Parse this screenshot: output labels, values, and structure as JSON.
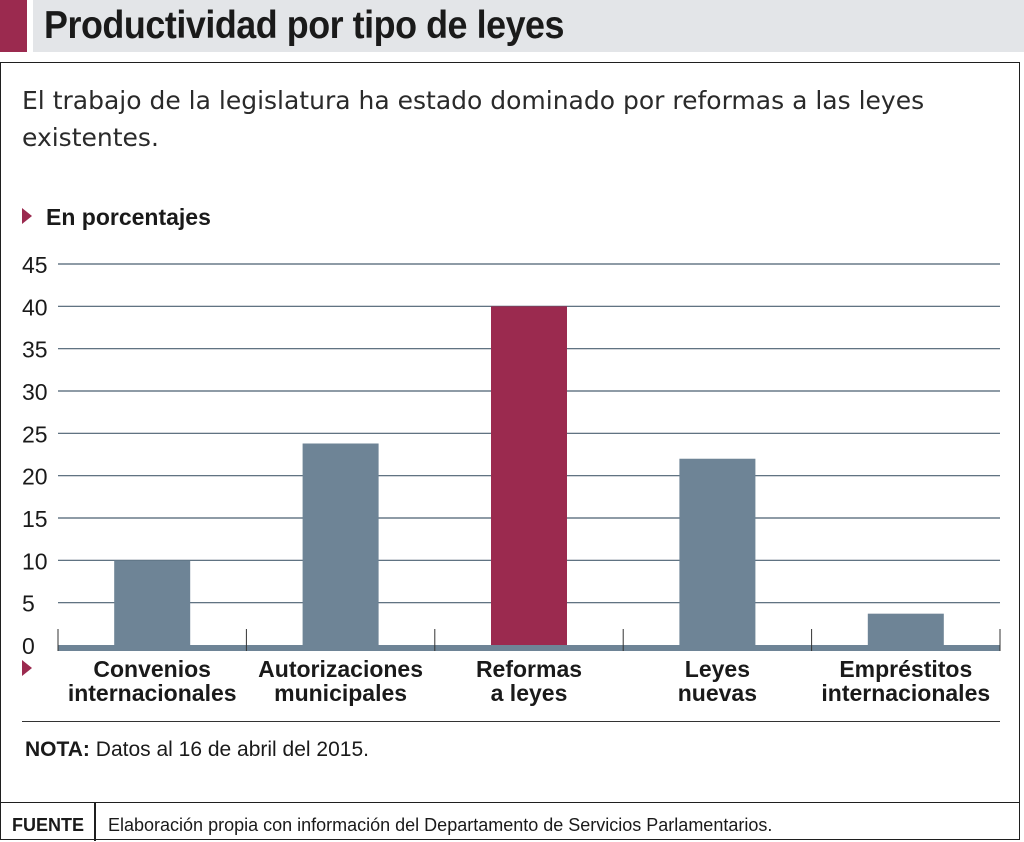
{
  "header": {
    "title": "Productividad por tipo de leyes"
  },
  "subtitle": "El trabajo de la legislatura ha estado dominado por reformas a las leyes existentes.",
  "unit_label": "En porcentajes",
  "note": {
    "label": "NOTA:",
    "text": "Datos al 16 de abril del 2015."
  },
  "source": {
    "label": "FUENTE",
    "text": "Elaboración propia con información del Departamento de Servicios Parlamentarios."
  },
  "colors": {
    "accent": "#9b2a4f",
    "bar": "#6e8496",
    "highlight": "#9b2a4f",
    "grid": "#4a5f70",
    "axis": "#6e8496"
  },
  "chart_data": {
    "type": "bar",
    "categories": [
      "Convenios\ninternacionales",
      "Autorizaciones\nmunicipales",
      "Reformas\na leyes",
      "Leyes\nnuevas",
      "Empréstitos\ninternacionales"
    ],
    "values": [
      10,
      23.8,
      40,
      22,
      3.7
    ],
    "highlight_index": 2,
    "ylim": [
      0,
      45
    ],
    "yticks": [
      "0",
      "5",
      "10",
      "15",
      "20",
      "25",
      "30",
      "35",
      "40",
      "45"
    ],
    "grid": true,
    "xlabel": "",
    "ylabel": ""
  }
}
